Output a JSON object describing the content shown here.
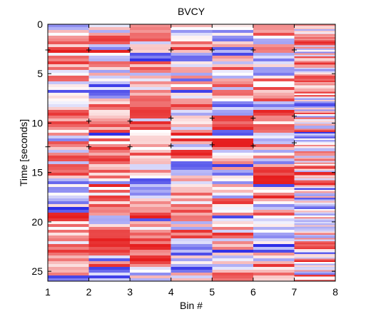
{
  "chart_data": {
    "type": "heatmap",
    "title": "BVCY",
    "xlabel": "Bin #",
    "ylabel": "Time [seconds]",
    "xlim": [
      1,
      8
    ],
    "ylim": [
      26,
      0
    ],
    "x_ticks": [
      "1",
      "2",
      "3",
      "4",
      "5",
      "6",
      "7",
      "8"
    ],
    "y_ticks": [
      "0",
      "5",
      "10",
      "15",
      "20",
      "25"
    ],
    "y_tick_values": [
      0,
      5,
      10,
      15,
      20,
      25
    ],
    "grid": false,
    "colormap": {
      "negative": "#2828e6",
      "zero": "#ffffff",
      "positive": "#e61e1e"
    },
    "columns_bins": [
      [
        1,
        2
      ],
      [
        2,
        3
      ],
      [
        3,
        4
      ],
      [
        4,
        5
      ],
      [
        5,
        6
      ],
      [
        6,
        7
      ],
      [
        7,
        8
      ]
    ],
    "column_row_counts": [
      90,
      90,
      90,
      90,
      90,
      90,
      160
    ],
    "markers": [
      {
        "x": 1,
        "y": 2.6
      },
      {
        "x": 2,
        "y": 2.6
      },
      {
        "x": 3,
        "y": 2.6
      },
      {
        "x": 4,
        "y": 2.6
      },
      {
        "x": 5,
        "y": 2.6
      },
      {
        "x": 6,
        "y": 2.6
      },
      {
        "x": 7,
        "y": 2.6
      },
      {
        "x": 2,
        "y": 9.8
      },
      {
        "x": 3,
        "y": 9.8
      },
      {
        "x": 4,
        "y": 9.5
      },
      {
        "x": 5,
        "y": 9.5
      },
      {
        "x": 6,
        "y": 9.5
      },
      {
        "x": 7,
        "y": 9.3
      },
      {
        "x": 1,
        "y": 12.4
      },
      {
        "x": 2,
        "y": 12.4
      },
      {
        "x": 3,
        "y": 12.4
      },
      {
        "x": 4,
        "y": 12.3
      },
      {
        "x": 5,
        "y": 12.2
      },
      {
        "x": 6,
        "y": 12.3
      },
      {
        "x": 7,
        "y": 12.0
      }
    ]
  }
}
